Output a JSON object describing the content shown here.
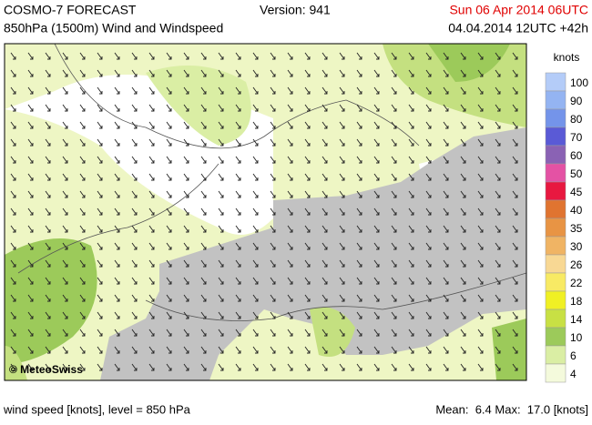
{
  "header": {
    "title": "COSMO-7 FORECAST",
    "subtitle": "850hPa (1500m) Wind and Windspeed",
    "version": "Version: 941",
    "valid": "Sun 06 Apr 2014 06UTC",
    "run": "04.04.2014 12UTC +42h"
  },
  "map": {
    "credit": "© MeteoSwiss"
  },
  "legend": {
    "unit": "knots",
    "entries": [
      {
        "label": "100",
        "color": "#b4ccf8"
      },
      {
        "label": "90",
        "color": "#94b4f2"
      },
      {
        "label": "80",
        "color": "#7494ea"
      },
      {
        "label": "70",
        "color": "#5a5ad6"
      },
      {
        "label": "60",
        "color": "#8a62b4"
      },
      {
        "label": "50",
        "color": "#e452a4"
      },
      {
        "label": "45",
        "color": "#e81840"
      },
      {
        "label": "40",
        "color": "#e07430"
      },
      {
        "label": "35",
        "color": "#e89444"
      },
      {
        "label": "30",
        "color": "#f0b464"
      },
      {
        "label": "26",
        "color": "#f8d894"
      },
      {
        "label": "22",
        "color": "#f8ea64"
      },
      {
        "label": "18",
        "color": "#f0f024"
      },
      {
        "label": "14",
        "color": "#c8e044"
      },
      {
        "label": "10",
        "color": "#9cca5a"
      },
      {
        "label": "6",
        "color": "#daeea4"
      },
      {
        "label": "4",
        "color": "#f4fadc"
      }
    ]
  },
  "footer": {
    "left": "wind speed [knots], level = 850 hPa",
    "right": "Mean:  6.4 Max:  17.0 [knots]"
  }
}
